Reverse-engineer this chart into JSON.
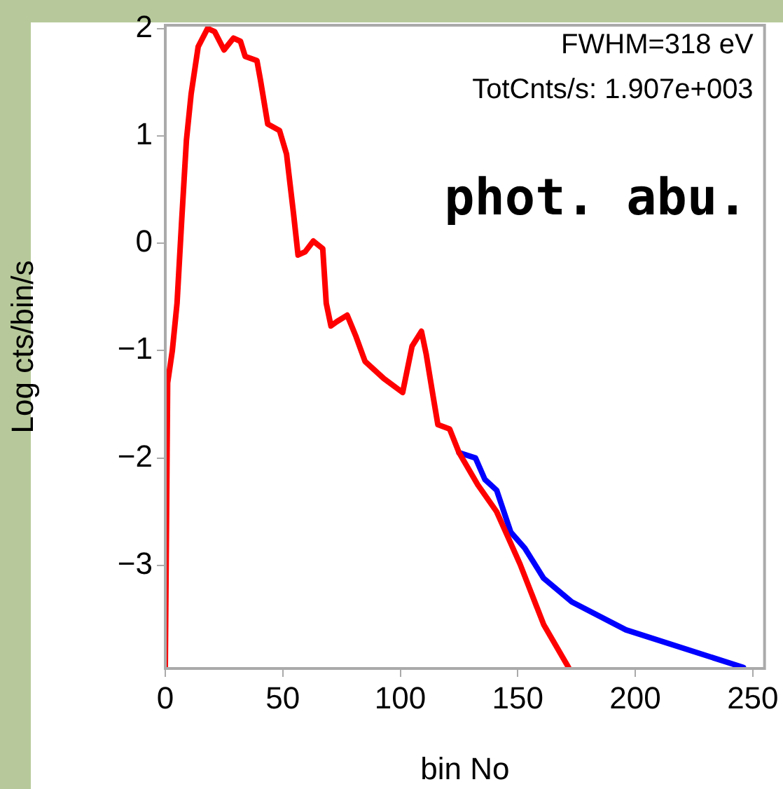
{
  "chart_data": {
    "type": "line",
    "xlabel": "bin No",
    "ylabel": "Log cts/bin/s",
    "annotations": [
      "FWHM=318 eV",
      "TotCnts/s: 1.907e+003",
      "phot. abu."
    ],
    "xlim": [
      0,
      255
    ],
    "xticks": [
      0,
      50,
      100,
      150,
      200,
      250
    ],
    "ylim": [
      -3.96,
      2.03
    ],
    "yticks": [
      -3,
      -2,
      -1,
      0,
      1,
      2
    ],
    "grid": false,
    "legend": false,
    "marker": "none",
    "line_style": "solid",
    "series": [
      {
        "color": "#0000ff",
        "x": [
          125,
          132,
          136,
          141,
          147,
          153,
          161,
          173,
          196,
          246
        ],
        "values": [
          -1.95,
          -2.0,
          -2.2,
          -2.3,
          -2.69,
          -2.84,
          -3.12,
          -3.34,
          -3.6,
          -3.95
        ]
      },
      {
        "color": "#ff0000",
        "x": [
          0,
          1,
          3,
          5,
          7,
          9,
          11,
          14,
          18,
          21,
          25,
          29,
          32,
          34,
          39,
          40.5,
          43.6,
          48.6,
          51.6,
          54.6,
          56.5,
          59.5,
          63,
          67,
          68.5,
          70.5,
          73,
          77.4,
          81,
          85,
          93,
          101,
          105,
          109,
          111,
          114,
          116,
          121,
          125,
          133,
          141,
          151,
          161,
          171.6
        ],
        "values": [
          -3.95,
          -1.3,
          -1.0,
          -0.56,
          0.22,
          0.96,
          1.39,
          1.83,
          2.0,
          1.97,
          1.8,
          1.91,
          1.88,
          1.74,
          1.7,
          1.52,
          1.11,
          1.05,
          0.83,
          0.27,
          -0.11,
          -0.08,
          0.02,
          -0.05,
          -0.56,
          -0.77,
          -0.73,
          -0.67,
          -0.86,
          -1.1,
          -1.26,
          -1.39,
          -0.96,
          -0.82,
          -1.03,
          -1.43,
          -1.69,
          -1.73,
          -1.95,
          -2.25,
          -2.5,
          -2.99,
          -3.55,
          -3.95
        ]
      }
    ]
  }
}
